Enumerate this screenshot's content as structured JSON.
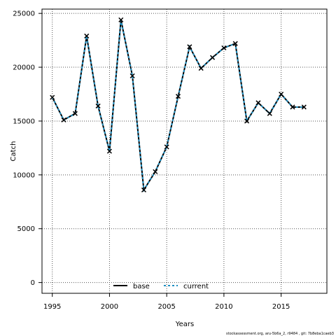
{
  "chart_data": {
    "type": "line",
    "title": "",
    "xlabel": "Years",
    "ylabel": "Catch",
    "xlim": [
      1994.1,
      2019.0
    ],
    "ylim": [
      -1000,
      25400
    ],
    "xticks": [
      1995,
      2000,
      2005,
      2010,
      2015
    ],
    "yticks": [
      0,
      5000,
      10000,
      15000,
      20000,
      25000
    ],
    "grid": true,
    "legend_position": "bottom-center",
    "x": [
      1995,
      1996,
      1997,
      1998,
      1999,
      2000,
      2001,
      2002,
      2003,
      2004,
      2005,
      2006,
      2007,
      2008,
      2009,
      2010,
      2011,
      2012,
      2013,
      2014,
      2015,
      2016,
      2017
    ],
    "series": [
      {
        "name": "base",
        "color": "#000000",
        "style": "solid",
        "values": [
          17200,
          15100,
          15700,
          22900,
          16400,
          12200,
          24400,
          19200,
          8600,
          10300,
          12600,
          17300,
          21900,
          19900,
          20900,
          21800,
          22200,
          15000,
          16700,
          15700,
          17500,
          16300,
          16300
        ]
      },
      {
        "name": "current",
        "color": "#1f8fc1",
        "style": "dashed",
        "values": [
          17200,
          15100,
          15700,
          22900,
          16400,
          12200,
          24400,
          19200,
          8600,
          10300,
          12600,
          17300,
          21900,
          19900,
          20900,
          21800,
          22200,
          15000,
          16700,
          15700,
          17500,
          16300,
          16300
        ]
      }
    ],
    "marker": "x"
  },
  "footer": "stockassessment.org, aru-5b6a_2, r9484 , git: 7b8eba1caeb3"
}
